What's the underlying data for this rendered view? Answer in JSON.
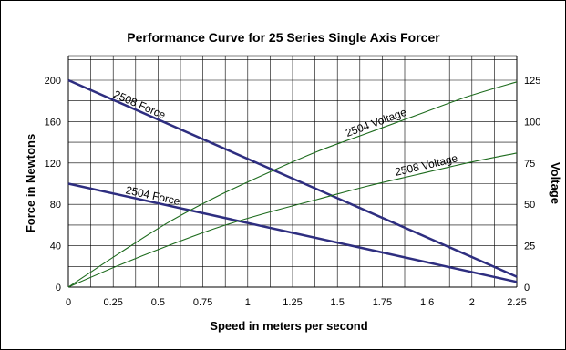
{
  "chart_data": {
    "type": "line",
    "title": "Performance Curve for 25 Series Single Axis Forcer",
    "xlabel": "Speed in meters per second",
    "ylabel": "Force in Newtons",
    "y2label": "Voltage",
    "x_tick_labels": [
      "0",
      "0.25",
      "0.5",
      "0.75",
      "1",
      "1.25",
      "1.5",
      "1.75",
      "1.6",
      "2",
      "2.25"
    ],
    "xlim": [
      0,
      2.25
    ],
    "ylim": [
      0,
      200
    ],
    "y_ticks": [
      0,
      40,
      80,
      120,
      160,
      200
    ],
    "y2lim": [
      0,
      125
    ],
    "y2_ticks": [
      0,
      25,
      50,
      75,
      100,
      125
    ],
    "grid": true,
    "colors": {
      "force": "#2e2e80",
      "voltage": "#1d6b1d"
    },
    "series": [
      {
        "name": "2508 Force",
        "axis": "left",
        "x": [
          0,
          2.25
        ],
        "y": [
          200,
          10
        ]
      },
      {
        "name": "2504 Force",
        "axis": "left",
        "x": [
          0,
          2.25
        ],
        "y": [
          100,
          5
        ]
      },
      {
        "name": "2504 Voltage",
        "axis": "right",
        "x": [
          0,
          0.25,
          0.5,
          0.75,
          1,
          1.25,
          1.5,
          1.75,
          2,
          2.25
        ],
        "y": [
          0,
          20,
          39,
          55,
          69,
          82,
          93,
          104,
          115,
          124
        ]
      },
      {
        "name": "2508 Voltage",
        "axis": "right",
        "x": [
          0,
          0.25,
          0.5,
          0.75,
          1,
          1.25,
          1.5,
          1.75,
          2,
          2.25
        ],
        "y": [
          0,
          13,
          25,
          36,
          45,
          53,
          61,
          68,
          75,
          81
        ]
      }
    ]
  }
}
